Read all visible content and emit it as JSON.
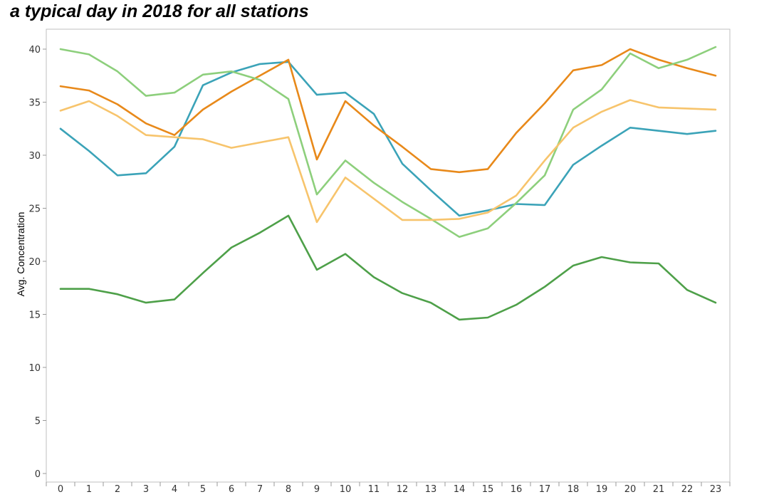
{
  "chart_data": {
    "type": "line",
    "title": "a typical day in 2018 for all stations",
    "xlabel": "",
    "ylabel": "Avg. Concentration",
    "x": [
      0,
      1,
      2,
      3,
      4,
      5,
      6,
      7,
      8,
      9,
      10,
      11,
      12,
      13,
      14,
      15,
      16,
      17,
      18,
      19,
      20,
      21,
      22,
      23
    ],
    "x_tick_labels": [
      "0",
      "1",
      "2",
      "3",
      "4",
      "5",
      "6",
      "7",
      "8",
      "9",
      "10",
      "11",
      "12",
      "13",
      "14",
      "15",
      "16",
      "17",
      "18",
      "19",
      "20",
      "21",
      "22",
      "23"
    ],
    "ylim": [
      0,
      42
    ],
    "y_ticks": [
      0,
      5,
      10,
      15,
      20,
      25,
      30,
      35,
      40
    ],
    "y_tick_labels": [
      "0",
      "5",
      "10",
      "15",
      "20",
      "25",
      "30",
      "35",
      "40"
    ],
    "grid": false,
    "legend": "none",
    "series": [
      {
        "color": "#3ba3b8",
        "values": [
          32.5,
          30.4,
          28.1,
          28.3,
          30.8,
          36.6,
          37.8,
          38.6,
          38.8,
          35.7,
          35.9,
          33.9,
          29.2,
          26.7,
          24.3,
          24.8,
          25.4,
          25.3,
          29.1,
          30.9,
          32.6,
          32.3,
          32.0,
          32.3
        ]
      },
      {
        "color": "#e8891a",
        "values": [
          36.5,
          36.1,
          34.8,
          33.0,
          31.9,
          34.3,
          36.0,
          37.5,
          39.0,
          29.6,
          35.1,
          32.8,
          30.8,
          28.7,
          28.4,
          28.7,
          32.1,
          34.9,
          38.0,
          38.5,
          40.0,
          39.0,
          38.2,
          37.5
        ]
      },
      {
        "color": "#8dcf7c",
        "values": [
          40.0,
          39.5,
          37.9,
          35.6,
          35.9,
          37.6,
          37.9,
          37.1,
          35.3,
          26.3,
          29.5,
          27.4,
          25.6,
          24.0,
          22.3,
          23.1,
          25.5,
          28.1,
          34.3,
          36.2,
          39.6,
          38.2,
          39.0,
          40.2
        ]
      },
      {
        "color": "#f7c46c",
        "values": [
          34.2,
          35.1,
          33.7,
          31.9,
          31.7,
          31.5,
          30.7,
          31.2,
          31.7,
          23.7,
          27.9,
          25.9,
          23.9,
          23.9,
          24.0,
          24.6,
          26.2,
          29.5,
          32.6,
          34.1,
          35.2,
          34.5,
          34.4,
          34.3
        ]
      },
      {
        "color": "#4ea049",
        "values": [
          17.4,
          17.4,
          16.9,
          16.1,
          16.4,
          18.9,
          21.3,
          22.7,
          24.3,
          19.2,
          20.7,
          18.5,
          17.0,
          16.1,
          14.5,
          14.7,
          15.9,
          17.6,
          19.6,
          20.4,
          19.9,
          19.8,
          17.3,
          16.1
        ]
      }
    ]
  }
}
